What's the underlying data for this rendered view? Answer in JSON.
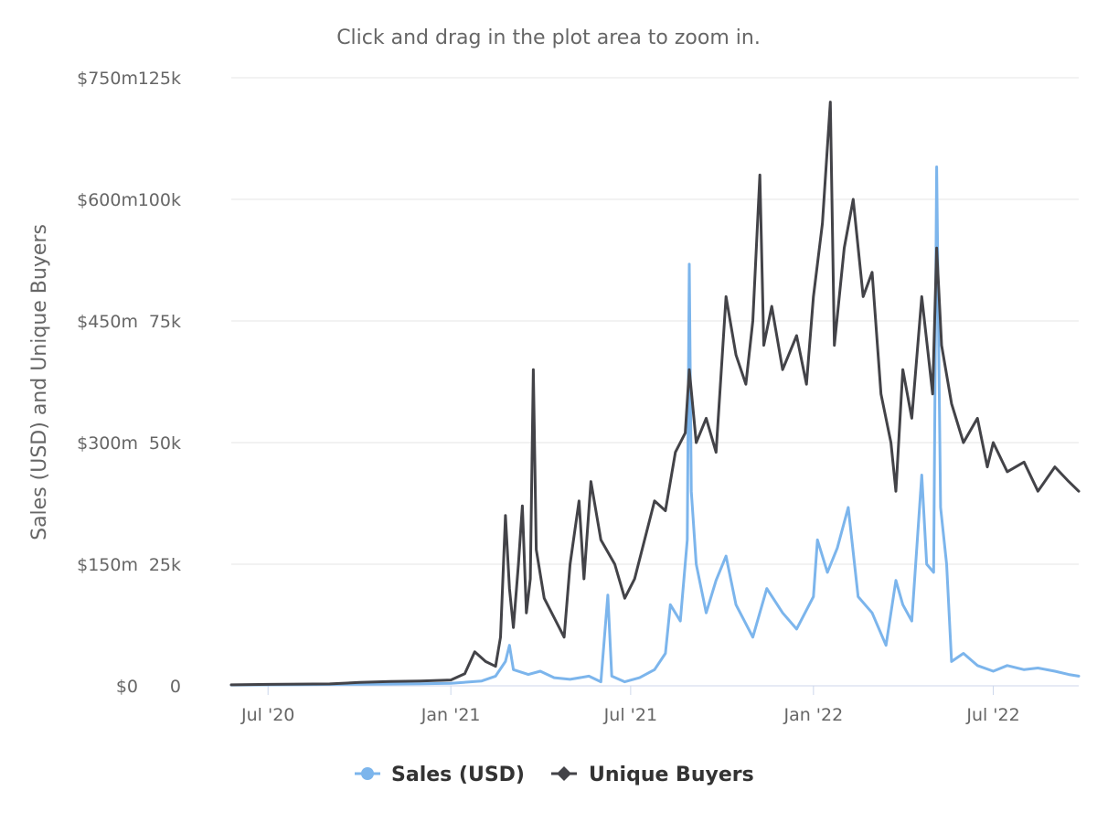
{
  "chart": {
    "subtitle": "Click and drag in the plot area to zoom in."
  },
  "chart_data": {
    "type": "line",
    "title": "",
    "subtitle": "Click and drag in the plot area to zoom in.",
    "ylabel": "Sales (USD) and Unique Buyers",
    "xlabel": "",
    "grid": true,
    "legend_placement": "bottom-center",
    "x_range": [
      "2020-05-25",
      "2022-09-25"
    ],
    "x_ticks": [
      {
        "date": "2020-07-01",
        "label": "Jul '20"
      },
      {
        "date": "2021-01-01",
        "label": "Jan '21"
      },
      {
        "date": "2021-07-01",
        "label": "Jul '21"
      },
      {
        "date": "2022-01-01",
        "label": "Jan '22"
      },
      {
        "date": "2022-07-01",
        "label": "Jul '22"
      }
    ],
    "y_axes": [
      {
        "name": "sales",
        "range": [
          0,
          750000000
        ],
        "ticks": [
          "$0",
          "$150m",
          "$300m",
          "$450m",
          "$600m",
          "$750m"
        ]
      },
      {
        "name": "buyers",
        "range": [
          0,
          125000
        ],
        "ticks": [
          "0",
          "25k",
          "50k",
          "75k",
          "100k",
          "125k"
        ]
      }
    ],
    "series": [
      {
        "name": "Sales (USD)",
        "axis": "sales",
        "color": "#7cb5ec",
        "points": [
          [
            "2020-05-25",
            1000000
          ],
          [
            "2020-08-01",
            1500000
          ],
          [
            "2020-10-01",
            2000000
          ],
          [
            "2020-12-01",
            2500000
          ],
          [
            "2021-01-01",
            3000000
          ],
          [
            "2021-02-01",
            6000000
          ],
          [
            "2021-02-15",
            12000000
          ],
          [
            "2021-02-25",
            30000000
          ],
          [
            "2021-03-01",
            50000000
          ],
          [
            "2021-03-05",
            20000000
          ],
          [
            "2021-03-20",
            14000000
          ],
          [
            "2021-04-01",
            18000000
          ],
          [
            "2021-04-15",
            10000000
          ],
          [
            "2021-05-01",
            8000000
          ],
          [
            "2021-05-20",
            12000000
          ],
          [
            "2021-06-01",
            5000000
          ],
          [
            "2021-06-08",
            112000000
          ],
          [
            "2021-06-12",
            12000000
          ],
          [
            "2021-06-25",
            5000000
          ],
          [
            "2021-07-10",
            10000000
          ],
          [
            "2021-07-25",
            20000000
          ],
          [
            "2021-08-05",
            40000000
          ],
          [
            "2021-08-10",
            100000000
          ],
          [
            "2021-08-20",
            80000000
          ],
          [
            "2021-08-27",
            180000000
          ],
          [
            "2021-08-29",
            520000000
          ],
          [
            "2021-08-31",
            240000000
          ],
          [
            "2021-09-05",
            150000000
          ],
          [
            "2021-09-15",
            90000000
          ],
          [
            "2021-09-25",
            130000000
          ],
          [
            "2021-10-05",
            160000000
          ],
          [
            "2021-10-15",
            100000000
          ],
          [
            "2021-11-01",
            60000000
          ],
          [
            "2021-11-15",
            120000000
          ],
          [
            "2021-12-01",
            90000000
          ],
          [
            "2021-12-15",
            70000000
          ],
          [
            "2022-01-01",
            110000000
          ],
          [
            "2022-01-05",
            180000000
          ],
          [
            "2022-01-15",
            140000000
          ],
          [
            "2022-01-25",
            170000000
          ],
          [
            "2022-02-05",
            220000000
          ],
          [
            "2022-02-15",
            110000000
          ],
          [
            "2022-03-01",
            90000000
          ],
          [
            "2022-03-15",
            50000000
          ],
          [
            "2022-03-25",
            130000000
          ],
          [
            "2022-04-01",
            100000000
          ],
          [
            "2022-04-10",
            80000000
          ],
          [
            "2022-04-20",
            260000000
          ],
          [
            "2022-04-25",
            150000000
          ],
          [
            "2022-05-02",
            140000000
          ],
          [
            "2022-05-05",
            640000000
          ],
          [
            "2022-05-09",
            220000000
          ],
          [
            "2022-05-15",
            150000000
          ],
          [
            "2022-05-20",
            30000000
          ],
          [
            "2022-06-01",
            40000000
          ],
          [
            "2022-06-15",
            25000000
          ],
          [
            "2022-07-01",
            18000000
          ],
          [
            "2022-07-15",
            25000000
          ],
          [
            "2022-08-01",
            20000000
          ],
          [
            "2022-08-15",
            22000000
          ],
          [
            "2022-09-01",
            18000000
          ],
          [
            "2022-09-15",
            14000000
          ],
          [
            "2022-09-25",
            12000000
          ]
        ]
      },
      {
        "name": "Unique Buyers",
        "axis": "buyers",
        "color": "#434348",
        "points": [
          [
            "2020-05-25",
            200
          ],
          [
            "2020-07-01",
            300
          ],
          [
            "2020-09-01",
            400
          ],
          [
            "2020-10-01",
            700
          ],
          [
            "2020-11-01",
            900
          ],
          [
            "2020-12-01",
            1000
          ],
          [
            "2021-01-01",
            1200
          ],
          [
            "2021-01-15",
            2500
          ],
          [
            "2021-01-25",
            7000
          ],
          [
            "2021-02-05",
            5000
          ],
          [
            "2021-02-15",
            4000
          ],
          [
            "2021-02-20",
            10000
          ],
          [
            "2021-02-25",
            35000
          ],
          [
            "2021-03-01",
            20000
          ],
          [
            "2021-03-05",
            12000
          ],
          [
            "2021-03-10",
            25000
          ],
          [
            "2021-03-14",
            37000
          ],
          [
            "2021-03-18",
            15000
          ],
          [
            "2021-03-22",
            22000
          ],
          [
            "2021-03-25",
            65000
          ],
          [
            "2021-03-28",
            28000
          ],
          [
            "2021-04-05",
            18000
          ],
          [
            "2021-04-15",
            14000
          ],
          [
            "2021-04-25",
            10000
          ],
          [
            "2021-05-01",
            25000
          ],
          [
            "2021-05-10",
            38000
          ],
          [
            "2021-05-15",
            22000
          ],
          [
            "2021-05-22",
            42000
          ],
          [
            "2021-06-01",
            30000
          ],
          [
            "2021-06-15",
            25000
          ],
          [
            "2021-06-25",
            18000
          ],
          [
            "2021-07-05",
            22000
          ],
          [
            "2021-07-15",
            30000
          ],
          [
            "2021-07-25",
            38000
          ],
          [
            "2021-08-05",
            36000
          ],
          [
            "2021-08-15",
            48000
          ],
          [
            "2021-08-25",
            52000
          ],
          [
            "2021-08-29",
            65000
          ],
          [
            "2021-09-05",
            50000
          ],
          [
            "2021-09-15",
            55000
          ],
          [
            "2021-09-25",
            48000
          ],
          [
            "2021-10-05",
            80000
          ],
          [
            "2021-10-15",
            68000
          ],
          [
            "2021-10-25",
            62000
          ],
          [
            "2021-11-01",
            75000
          ],
          [
            "2021-11-08",
            105000
          ],
          [
            "2021-11-12",
            70000
          ],
          [
            "2021-11-20",
            78000
          ],
          [
            "2021-12-01",
            65000
          ],
          [
            "2021-12-15",
            72000
          ],
          [
            "2021-12-25",
            62000
          ],
          [
            "2022-01-01",
            80000
          ],
          [
            "2022-01-10",
            95000
          ],
          [
            "2022-01-18",
            120000
          ],
          [
            "2022-01-22",
            70000
          ],
          [
            "2022-02-01",
            90000
          ],
          [
            "2022-02-10",
            100000
          ],
          [
            "2022-02-20",
            80000
          ],
          [
            "2022-03-01",
            85000
          ],
          [
            "2022-03-10",
            60000
          ],
          [
            "2022-03-20",
            50000
          ],
          [
            "2022-03-25",
            40000
          ],
          [
            "2022-04-01",
            65000
          ],
          [
            "2022-04-10",
            55000
          ],
          [
            "2022-04-20",
            80000
          ],
          [
            "2022-05-01",
            60000
          ],
          [
            "2022-05-05",
            90000
          ],
          [
            "2022-05-10",
            70000
          ],
          [
            "2022-05-20",
            58000
          ],
          [
            "2022-06-01",
            50000
          ],
          [
            "2022-06-15",
            55000
          ],
          [
            "2022-06-25",
            45000
          ],
          [
            "2022-07-01",
            50000
          ],
          [
            "2022-07-15",
            44000
          ],
          [
            "2022-08-01",
            46000
          ],
          [
            "2022-08-15",
            40000
          ],
          [
            "2022-09-01",
            45000
          ],
          [
            "2022-09-15",
            42000
          ],
          [
            "2022-09-25",
            40000
          ]
        ]
      }
    ]
  }
}
